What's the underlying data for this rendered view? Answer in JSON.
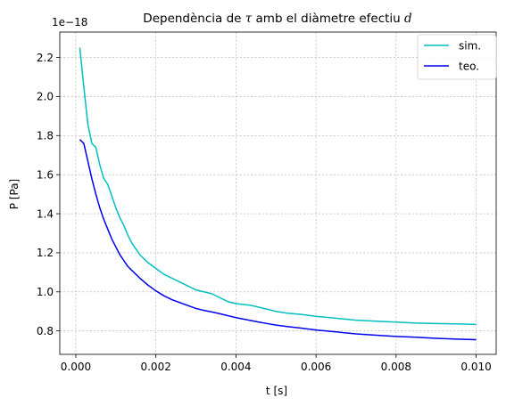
{
  "chart_data": {
    "type": "line",
    "title": "Dependència de τ amb el diàmetre efectiu d",
    "title_parts": {
      "before_tau": "Dependència de ",
      "tau": "τ",
      "middle": " amb el diàmetre efectiu ",
      "d": "d"
    },
    "xlabel": "t [s]",
    "ylabel": "P [Pa]",
    "y_offset_label": "1e−18",
    "xlim": [
      -0.0004,
      0.0105
    ],
    "ylim": [
      0.68,
      2.33
    ],
    "x_ticks": [
      0.0,
      0.002,
      0.004,
      0.006,
      0.008,
      0.01
    ],
    "x_tick_labels": [
      "0.000",
      "0.002",
      "0.004",
      "0.006",
      "0.008",
      "0.010"
    ],
    "y_ticks": [
      0.8,
      1.0,
      1.2,
      1.4,
      1.6,
      1.8,
      2.0,
      2.2
    ],
    "y_tick_labels": [
      "0.8",
      "1.0",
      "1.2",
      "1.4",
      "1.6",
      "1.8",
      "2.0",
      "2.2"
    ],
    "grid": true,
    "legend_position": "top-right",
    "series": [
      {
        "name": "sim.",
        "color": "#00bfbf",
        "x": [
          0.0001,
          0.0002,
          0.0003,
          0.0004,
          0.0005,
          0.0006,
          0.0007,
          0.0008,
          0.0009,
          0.001,
          0.0011,
          0.0012,
          0.0013,
          0.0014,
          0.0015,
          0.0016,
          0.0018,
          0.002,
          0.0022,
          0.0024,
          0.0026,
          0.0028,
          0.003,
          0.0032,
          0.0034,
          0.0036,
          0.0038,
          0.004,
          0.0042,
          0.0044,
          0.0046,
          0.0048,
          0.005,
          0.0053,
          0.0056,
          0.006,
          0.0065,
          0.007,
          0.0075,
          0.008,
          0.0085,
          0.009,
          0.0095,
          0.01
        ],
        "y": [
          2.25,
          2.05,
          1.86,
          1.76,
          1.74,
          1.65,
          1.58,
          1.55,
          1.49,
          1.43,
          1.38,
          1.34,
          1.29,
          1.25,
          1.22,
          1.19,
          1.15,
          1.12,
          1.09,
          1.07,
          1.05,
          1.03,
          1.01,
          1.0,
          0.99,
          0.97,
          0.95,
          0.94,
          0.935,
          0.93,
          0.92,
          0.91,
          0.9,
          0.89,
          0.885,
          0.875,
          0.865,
          0.855,
          0.85,
          0.845,
          0.84,
          0.838,
          0.836,
          0.833
        ]
      },
      {
        "name": "teo.",
        "color": "#0000ee",
        "x": [
          0.0001,
          0.0002,
          0.0003,
          0.0004,
          0.0005,
          0.0006,
          0.0007,
          0.0008,
          0.0009,
          0.001,
          0.0011,
          0.0012,
          0.0013,
          0.0014,
          0.0015,
          0.0016,
          0.0018,
          0.002,
          0.0022,
          0.0024,
          0.0026,
          0.0028,
          0.003,
          0.0032,
          0.0034,
          0.0036,
          0.0038,
          0.004,
          0.0042,
          0.0044,
          0.0046,
          0.0048,
          0.005,
          0.0053,
          0.0056,
          0.006,
          0.0065,
          0.007,
          0.0075,
          0.008,
          0.0085,
          0.009,
          0.0095,
          0.01
        ],
        "y": [
          1.78,
          1.76,
          1.67,
          1.58,
          1.5,
          1.43,
          1.37,
          1.32,
          1.27,
          1.23,
          1.19,
          1.16,
          1.13,
          1.11,
          1.09,
          1.07,
          1.035,
          1.005,
          0.98,
          0.96,
          0.945,
          0.93,
          0.915,
          0.905,
          0.897,
          0.888,
          0.878,
          0.868,
          0.86,
          0.852,
          0.844,
          0.837,
          0.83,
          0.822,
          0.815,
          0.805,
          0.795,
          0.785,
          0.778,
          0.772,
          0.768,
          0.762,
          0.758,
          0.755
        ]
      }
    ]
  }
}
